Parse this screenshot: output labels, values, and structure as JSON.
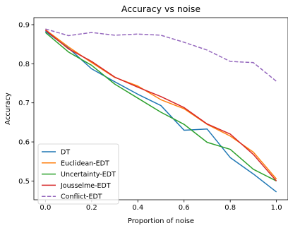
{
  "chart_data": {
    "type": "line",
    "title": "Accuracy vs noise",
    "xlabel": "Proportion of noise",
    "ylabel": "Accuracy",
    "xlim": [
      -0.05,
      1.05
    ],
    "ylim": [
      0.452,
      0.918
    ],
    "xticks": [
      0.0,
      0.2,
      0.4,
      0.6,
      0.8,
      1.0
    ],
    "xtick_labels": [
      "0.0",
      "0.2",
      "0.4",
      "0.6",
      "0.8",
      "1.0"
    ],
    "yticks": [
      0.5,
      0.6,
      0.7,
      0.8,
      0.9
    ],
    "ytick_labels": [
      "0.5",
      "0.6",
      "0.7",
      "0.8",
      "0.9"
    ],
    "grid": false,
    "legend_position": "lower-left",
    "x": [
      0.0,
      0.1,
      0.2,
      0.3,
      0.4,
      0.5,
      0.6,
      0.7,
      0.8,
      0.9,
      1.0
    ],
    "series": [
      {
        "name": "DT",
        "color": "#1f77b4",
        "dash": "solid",
        "values": [
          0.883,
          0.84,
          0.787,
          0.754,
          0.722,
          0.693,
          0.63,
          0.633,
          0.56,
          0.518,
          0.472
        ]
      },
      {
        "name": "Euclidean-EDT",
        "color": "#ff7f0e",
        "dash": "solid",
        "values": [
          0.887,
          0.843,
          0.803,
          0.765,
          0.743,
          0.708,
          0.685,
          0.645,
          0.615,
          0.574,
          0.505
        ]
      },
      {
        "name": "Uncertainty-EDT",
        "color": "#2ca02c",
        "dash": "solid",
        "values": [
          0.88,
          0.83,
          0.796,
          0.748,
          0.712,
          0.676,
          0.645,
          0.599,
          0.581,
          0.53,
          0.5
        ]
      },
      {
        "name": "Jousselme-EDT",
        "color": "#d62728",
        "dash": "solid",
        "values": [
          0.886,
          0.838,
          0.806,
          0.766,
          0.74,
          0.716,
          0.688,
          0.646,
          0.62,
          0.568,
          0.5
        ]
      },
      {
        "name": "Conflict-EDT",
        "color": "#9467bd",
        "dash": "dashed",
        "values": [
          0.889,
          0.872,
          0.88,
          0.873,
          0.876,
          0.873,
          0.855,
          0.835,
          0.806,
          0.803,
          0.755
        ]
      }
    ]
  }
}
